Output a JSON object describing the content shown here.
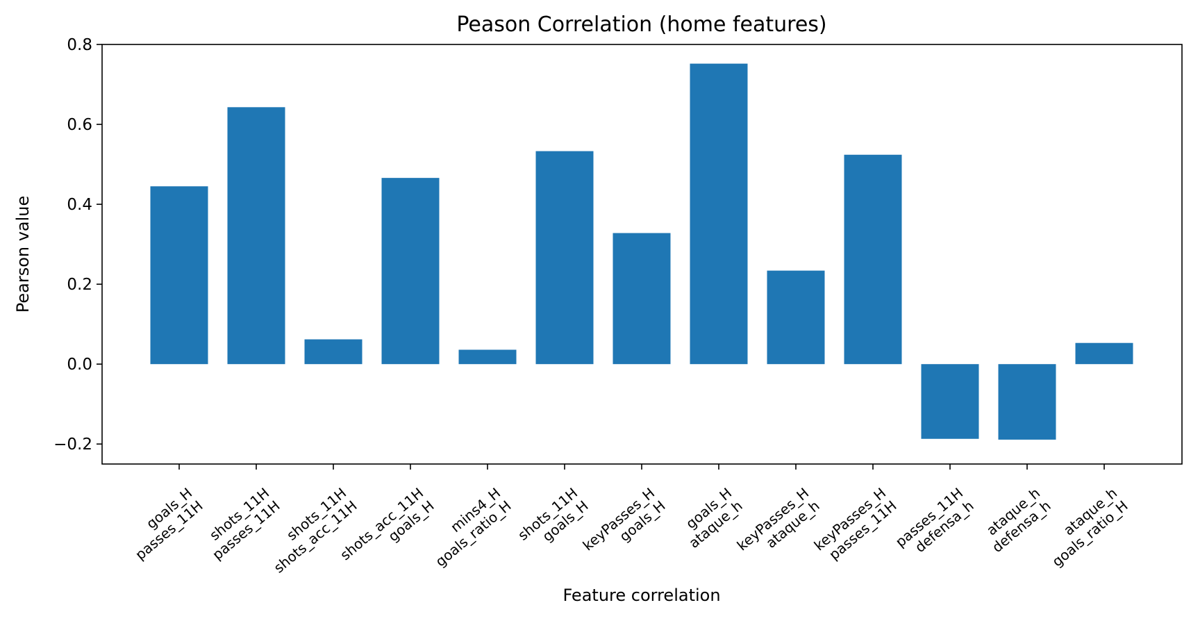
{
  "chart_data": {
    "type": "bar",
    "title": "Peason Correlation (home features)",
    "xlabel": "Feature correlation",
    "ylabel": "Pearson value",
    "ylim": [
      -0.25,
      0.8
    ],
    "yticks": [
      -0.2,
      0.0,
      0.2,
      0.4,
      0.6,
      0.8
    ],
    "ytick_labels": [
      "−0.2",
      "0.0",
      "0.2",
      "0.4",
      "0.6",
      "0.8"
    ],
    "grid": false,
    "bar_color": "#1f77b4",
    "categories": [
      [
        "goals_H",
        "passes_11H"
      ],
      [
        "shots_11H",
        "passes_11H"
      ],
      [
        "shots_11H",
        "shots_acc_11H"
      ],
      [
        "shots_acc_11H",
        "goals_H"
      ],
      [
        "mins4_H",
        "goals_ratio_H"
      ],
      [
        "shots_11H",
        "goals_H"
      ],
      [
        "keyPasses_H",
        "goals_H"
      ],
      [
        "goals_H",
        "ataque_h"
      ],
      [
        "keyPasses_H",
        "ataque_h"
      ],
      [
        "keyPasses_H",
        "passes_11H"
      ],
      [
        "passes_11H",
        "defensa_h"
      ],
      [
        "ataque_h",
        "defensa_h"
      ],
      [
        "ataque_h",
        "goals_ratio_H"
      ]
    ],
    "values": [
      0.445,
      0.643,
      0.062,
      0.466,
      0.036,
      0.533,
      0.328,
      0.752,
      0.234,
      0.524,
      -0.187,
      -0.189,
      0.053
    ]
  }
}
